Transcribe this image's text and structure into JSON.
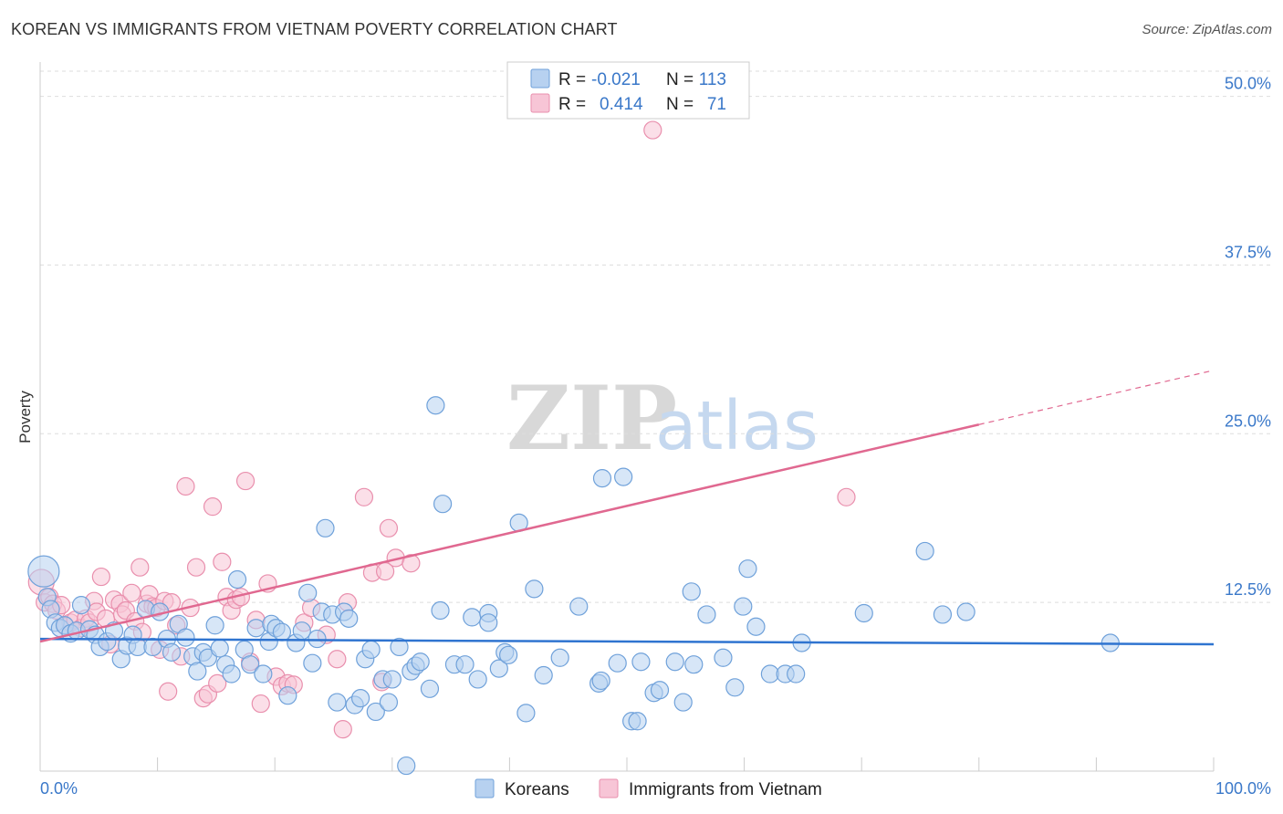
{
  "header": {
    "title": "KOREAN VS IMMIGRANTS FROM VIETNAM POVERTY CORRELATION CHART",
    "source": "Source: ZipAtlas.com"
  },
  "watermark": {
    "zip": "ZIP",
    "atlas": "atlas"
  },
  "legend": {
    "rows": [
      {
        "r_label": "R =",
        "r_value": "-0.021",
        "n_label": "N =",
        "n_value": "113"
      },
      {
        "r_label": "R =",
        "r_value": "0.414",
        "n_label": "N =",
        "n_value": "71"
      }
    ]
  },
  "bottom_legend": {
    "koreans": "Koreans",
    "vietnam": "Immigrants from Vietnam"
  },
  "colors": {
    "koreans_fill": "#b7d1f0",
    "koreans_stroke": "#6fa1da",
    "koreans_line": "#2f74d0",
    "vietnam_fill": "#f7c5d6",
    "vietnam_stroke": "#e98fad",
    "vietnam_line": "#e06890"
  },
  "chart_data": {
    "type": "scatter",
    "title": "KOREAN VS IMMIGRANTS FROM VIETNAM POVERTY CORRELATION CHART",
    "xlabel": "",
    "ylabel": "Poverty",
    "xlim": [
      0,
      100
    ],
    "ylim": [
      0,
      52
    ],
    "x_tick_labels": [
      "0.0%",
      "100.0%"
    ],
    "y_ticks": [
      12.5,
      25.0,
      37.5,
      50.0
    ],
    "y_tick_labels": [
      "12.5%",
      "25.0%",
      "37.5%",
      "50.0%"
    ],
    "grid": true,
    "series": [
      {
        "name": "Koreans",
        "r": -0.021,
        "n": 113,
        "trend": {
          "x0": 0,
          "y0": 9.8,
          "x1": 100,
          "y1": 9.4
        },
        "points": [
          [
            0.3,
            14.8
          ],
          [
            0.6,
            12.9
          ],
          [
            0.9,
            12.0
          ],
          [
            1.3,
            11.0
          ],
          [
            1.7,
            10.6
          ],
          [
            2.1,
            10.8
          ],
          [
            2.6,
            10.2
          ],
          [
            3.1,
            10.4
          ],
          [
            3.5,
            12.3
          ],
          [
            4.2,
            10.5
          ],
          [
            4.7,
            10.1
          ],
          [
            5.1,
            9.2
          ],
          [
            5.7,
            9.6
          ],
          [
            6.3,
            10.4
          ],
          [
            6.9,
            8.3
          ],
          [
            7.4,
            9.3
          ],
          [
            7.9,
            10.1
          ],
          [
            8.3,
            9.2
          ],
          [
            9.0,
            12.0
          ],
          [
            9.6,
            9.2
          ],
          [
            10.2,
            11.8
          ],
          [
            10.8,
            9.8
          ],
          [
            11.2,
            8.8
          ],
          [
            11.8,
            10.9
          ],
          [
            12.4,
            9.9
          ],
          [
            13.0,
            8.5
          ],
          [
            13.4,
            7.4
          ],
          [
            13.9,
            8.8
          ],
          [
            14.3,
            8.4
          ],
          [
            14.9,
            10.8
          ],
          [
            15.3,
            9.1
          ],
          [
            15.8,
            7.9
          ],
          [
            16.3,
            7.2
          ],
          [
            16.8,
            14.2
          ],
          [
            17.4,
            9.0
          ],
          [
            17.9,
            7.9
          ],
          [
            18.4,
            10.6
          ],
          [
            19.0,
            7.2
          ],
          [
            19.5,
            9.6
          ],
          [
            19.7,
            10.9
          ],
          [
            20.1,
            10.6
          ],
          [
            20.6,
            10.3
          ],
          [
            21.1,
            5.6
          ],
          [
            21.8,
            9.5
          ],
          [
            22.3,
            10.4
          ],
          [
            22.8,
            13.2
          ],
          [
            23.2,
            8.0
          ],
          [
            23.6,
            9.8
          ],
          [
            24.0,
            11.8
          ],
          [
            24.3,
            18.0
          ],
          [
            24.9,
            11.6
          ],
          [
            25.3,
            5.1
          ],
          [
            25.9,
            11.8
          ],
          [
            26.3,
            11.3
          ],
          [
            26.8,
            4.9
          ],
          [
            27.3,
            5.4
          ],
          [
            27.7,
            8.3
          ],
          [
            28.2,
            9.0
          ],
          [
            28.6,
            4.4
          ],
          [
            29.2,
            6.8
          ],
          [
            29.7,
            5.1
          ],
          [
            30.0,
            6.8
          ],
          [
            30.6,
            9.2
          ],
          [
            31.2,
            0.4
          ],
          [
            31.6,
            7.4
          ],
          [
            32.0,
            7.8
          ],
          [
            32.4,
            8.1
          ],
          [
            33.2,
            6.1
          ],
          [
            33.7,
            27.1
          ],
          [
            34.1,
            11.9
          ],
          [
            34.3,
            19.8
          ],
          [
            35.3,
            7.9
          ],
          [
            36.2,
            7.9
          ],
          [
            36.8,
            11.4
          ],
          [
            37.3,
            6.8
          ],
          [
            38.2,
            11.7
          ],
          [
            38.2,
            11.0
          ],
          [
            39.1,
            7.6
          ],
          [
            39.6,
            8.8
          ],
          [
            39.9,
            8.6
          ],
          [
            40.8,
            18.4
          ],
          [
            41.4,
            4.3
          ],
          [
            42.1,
            13.5
          ],
          [
            42.9,
            7.1
          ],
          [
            44.3,
            8.4
          ],
          [
            45.9,
            12.2
          ],
          [
            47.6,
            6.5
          ],
          [
            47.8,
            6.7
          ],
          [
            47.9,
            21.7
          ],
          [
            49.2,
            8.0
          ],
          [
            49.7,
            21.8
          ],
          [
            50.4,
            3.7
          ],
          [
            50.9,
            3.7
          ],
          [
            51.2,
            8.1
          ],
          [
            52.3,
            5.8
          ],
          [
            52.8,
            6.0
          ],
          [
            54.1,
            8.1
          ],
          [
            54.8,
            5.1
          ],
          [
            55.5,
            13.3
          ],
          [
            55.7,
            7.9
          ],
          [
            56.8,
            11.6
          ],
          [
            58.2,
            8.4
          ],
          [
            59.2,
            6.2
          ],
          [
            59.9,
            12.2
          ],
          [
            60.3,
            15.0
          ],
          [
            61.0,
            10.7
          ],
          [
            62.2,
            7.2
          ],
          [
            63.5,
            7.2
          ],
          [
            64.4,
            7.2
          ],
          [
            64.9,
            9.5
          ],
          [
            70.2,
            11.7
          ],
          [
            75.4,
            16.3
          ],
          [
            76.9,
            11.6
          ],
          [
            78.9,
            11.8
          ],
          [
            91.2,
            9.5
          ]
        ]
      },
      {
        "name": "Immigrants from Vietnam",
        "r": 0.414,
        "n": 71,
        "trend": {
          "x0": 0,
          "y0": 9.6,
          "x1": 100,
          "y1": 29.7,
          "solid_until": 80
        },
        "points": [
          [
            0.1,
            14.0
          ],
          [
            0.4,
            12.5
          ],
          [
            0.8,
            12.9
          ],
          [
            1.1,
            12.4
          ],
          [
            1.4,
            11.9
          ],
          [
            1.8,
            12.3
          ],
          [
            2.2,
            10.7
          ],
          [
            2.6,
            11.0
          ],
          [
            3.0,
            11.2
          ],
          [
            3.5,
            10.6
          ],
          [
            3.9,
            11.3
          ],
          [
            4.2,
            11.0
          ],
          [
            4.6,
            12.6
          ],
          [
            4.8,
            11.8
          ],
          [
            5.2,
            14.4
          ],
          [
            5.6,
            11.3
          ],
          [
            6.0,
            9.4
          ],
          [
            6.3,
            12.7
          ],
          [
            6.8,
            12.4
          ],
          [
            7.0,
            11.6
          ],
          [
            7.3,
            11.9
          ],
          [
            7.8,
            13.2
          ],
          [
            8.1,
            11.1
          ],
          [
            8.5,
            15.1
          ],
          [
            8.7,
            10.3
          ],
          [
            9.1,
            12.4
          ],
          [
            9.3,
            13.1
          ],
          [
            9.6,
            12.2
          ],
          [
            9.9,
            12.1
          ],
          [
            10.2,
            9.0
          ],
          [
            10.6,
            12.6
          ],
          [
            10.9,
            5.9
          ],
          [
            11.2,
            12.5
          ],
          [
            11.6,
            10.8
          ],
          [
            12.0,
            8.5
          ],
          [
            12.4,
            21.1
          ],
          [
            12.8,
            12.1
          ],
          [
            13.3,
            15.1
          ],
          [
            13.9,
            5.4
          ],
          [
            14.3,
            5.7
          ],
          [
            14.7,
            19.6
          ],
          [
            15.1,
            6.5
          ],
          [
            15.5,
            15.5
          ],
          [
            15.9,
            12.9
          ],
          [
            16.3,
            11.9
          ],
          [
            16.7,
            12.7
          ],
          [
            17.1,
            12.9
          ],
          [
            17.5,
            21.5
          ],
          [
            17.9,
            8.1
          ],
          [
            18.4,
            11.2
          ],
          [
            18.8,
            5.0
          ],
          [
            19.4,
            13.9
          ],
          [
            20.1,
            7.0
          ],
          [
            20.6,
            6.3
          ],
          [
            21.1,
            6.5
          ],
          [
            21.6,
            6.4
          ],
          [
            22.5,
            11.0
          ],
          [
            23.1,
            12.1
          ],
          [
            24.4,
            10.1
          ],
          [
            25.3,
            8.3
          ],
          [
            25.8,
            3.1
          ],
          [
            26.2,
            12.5
          ],
          [
            27.6,
            20.3
          ],
          [
            28.3,
            14.7
          ],
          [
            29.1,
            6.6
          ],
          [
            29.4,
            14.8
          ],
          [
            29.7,
            18.0
          ],
          [
            30.3,
            15.8
          ],
          [
            31.6,
            15.4
          ],
          [
            52.2,
            47.5
          ],
          [
            68.7,
            20.3
          ]
        ]
      }
    ]
  }
}
